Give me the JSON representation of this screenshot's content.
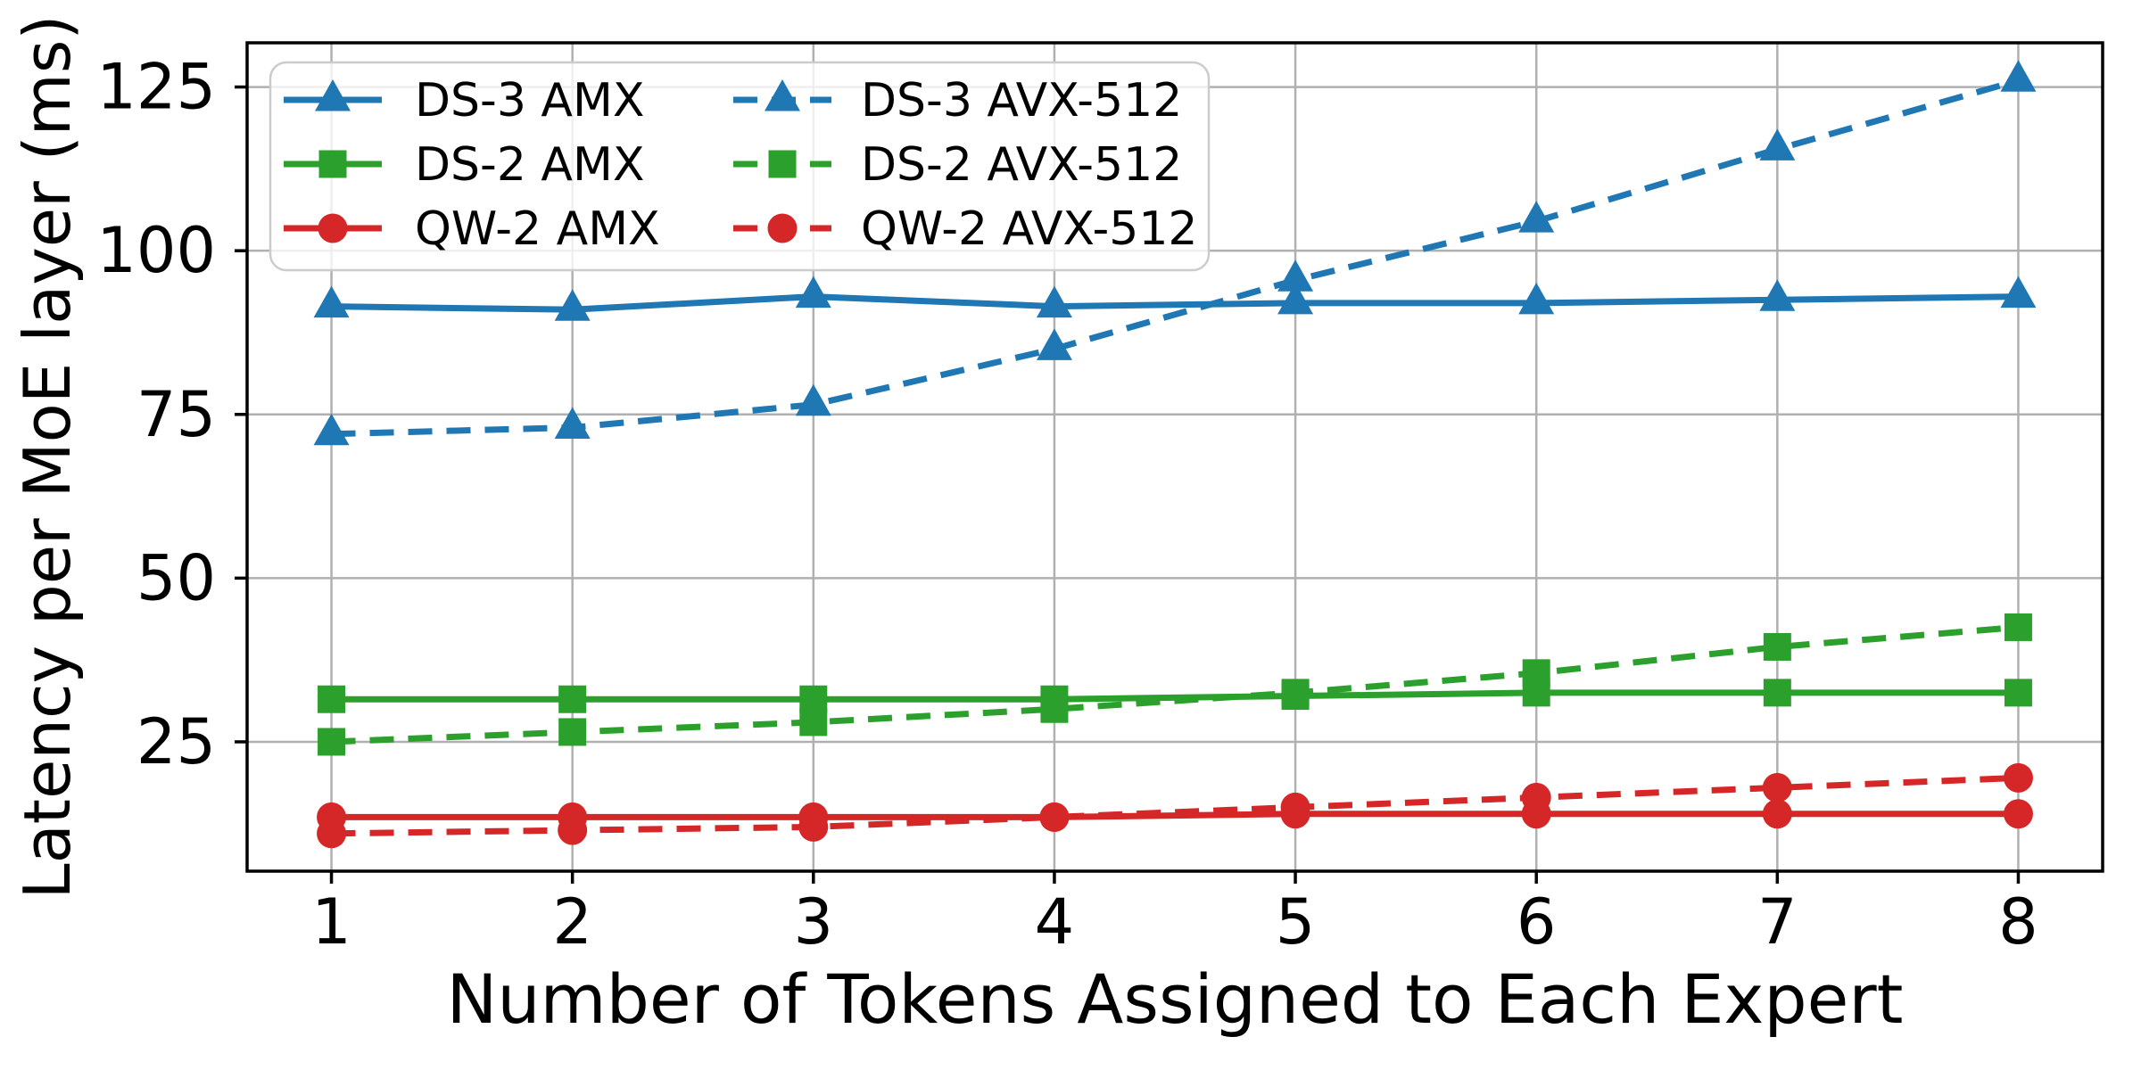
{
  "figure": {
    "background": "#ffffff",
    "grid_color": "#b0b0b0",
    "spine_color": "#000000",
    "legend_border_color": "#cccccc",
    "legend_background": "#ffffff"
  },
  "chart_data": {
    "type": "line",
    "title": "",
    "xlabel": "Number of Tokens Assigned to Each Expert",
    "ylabel": "Latency per MoE layer (ms)",
    "x": [
      1,
      2,
      3,
      4,
      5,
      6,
      7,
      8
    ],
    "xticks": [
      1,
      2,
      3,
      4,
      5,
      6,
      7,
      8
    ],
    "yticks": [
      25,
      50,
      75,
      100,
      125
    ],
    "xlim": [
      0.65,
      8.35
    ],
    "ylim": [
      5.25,
      131.75
    ],
    "grid": true,
    "legend_position": "upper left",
    "legend_columns": 2,
    "series": [
      {
        "name": "DS-3 AMX",
        "color": "#1f77b4",
        "linestyle": "solid",
        "marker": "triangle",
        "values": [
          91.5,
          91,
          93,
          91.5,
          92,
          92,
          92.5,
          93
        ]
      },
      {
        "name": "DS-2 AMX",
        "color": "#2ca02c",
        "linestyle": "solid",
        "marker": "square",
        "values": [
          31.5,
          31.5,
          31.5,
          31.5,
          32,
          32.5,
          32.5,
          32.5
        ]
      },
      {
        "name": "QW-2 AMX",
        "color": "#d62728",
        "linestyle": "solid",
        "marker": "circle",
        "values": [
          13.5,
          13.5,
          13.5,
          13.5,
          14,
          14,
          14,
          14
        ]
      },
      {
        "name": "DS-3 AVX-512",
        "color": "#1f77b4",
        "linestyle": "dashed",
        "marker": "triangle",
        "values": [
          72,
          73,
          76.5,
          85,
          95.5,
          104.5,
          115.5,
          126
        ]
      },
      {
        "name": "DS-2 AVX-512",
        "color": "#2ca02c",
        "linestyle": "dashed",
        "marker": "square",
        "values": [
          25,
          26.5,
          28,
          30,
          32.5,
          35.5,
          39.5,
          42.5
        ]
      },
      {
        "name": "QW-2 AVX-512",
        "color": "#d62728",
        "linestyle": "dashed",
        "marker": "circle",
        "values": [
          11,
          11.5,
          12,
          13.5,
          15,
          16.5,
          18,
          19.5
        ]
      }
    ]
  }
}
